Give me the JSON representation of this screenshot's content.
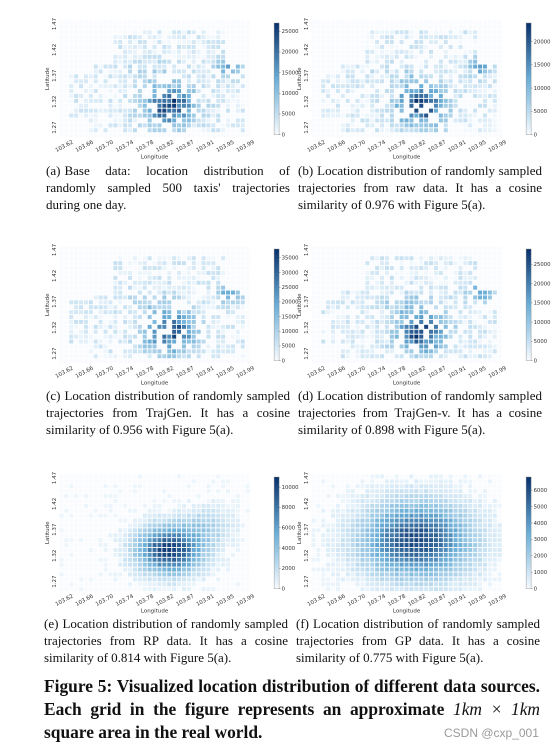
{
  "chart_data": [
    {
      "type": "heatmap",
      "panel_id": "a",
      "xlabel": "Longitude",
      "ylabel": "Latitude",
      "xticks": [
        "103.62",
        "103.66",
        "103.70",
        "103.74",
        "103.78",
        "103.82",
        "103.87",
        "103.91",
        "103.95",
        "103.99"
      ],
      "yticks": [
        "1.27",
        "1.32",
        "1.37",
        "1.42",
        "1.47"
      ],
      "colorbar_ticks": [
        "0",
        "5000",
        "10000",
        "15000",
        "20000",
        "25000"
      ],
      "colorbar_max": 27000,
      "distribution": "empirical",
      "seed": 11
    },
    {
      "type": "heatmap",
      "panel_id": "b",
      "xlabel": "Longitude",
      "ylabel": "Latitude",
      "xticks": [
        "103.62",
        "103.66",
        "103.70",
        "103.74",
        "103.78",
        "103.82",
        "103.87",
        "103.91",
        "103.95",
        "103.99"
      ],
      "yticks": [
        "1.27",
        "1.32",
        "1.37",
        "1.42",
        "1.47"
      ],
      "colorbar_ticks": [
        "0",
        "5000",
        "10000",
        "15000",
        "20000"
      ],
      "colorbar_max": 24000,
      "distribution": "empirical",
      "seed": 23
    },
    {
      "type": "heatmap",
      "panel_id": "c",
      "xlabel": "Longitude",
      "ylabel": "Latitude",
      "xticks": [
        "103.62",
        "103.66",
        "103.70",
        "103.74",
        "103.78",
        "103.82",
        "103.87",
        "103.91",
        "103.95",
        "103.99"
      ],
      "yticks": [
        "1.27",
        "1.32",
        "1.37",
        "1.42",
        "1.47"
      ],
      "colorbar_ticks": [
        "0",
        "5000",
        "10000",
        "15000",
        "20000",
        "25000",
        "30000",
        "35000"
      ],
      "colorbar_max": 38000,
      "distribution": "empirical",
      "seed": 37
    },
    {
      "type": "heatmap",
      "panel_id": "d",
      "xlabel": "Longitude",
      "ylabel": "Latitude",
      "xticks": [
        "103.62",
        "103.66",
        "103.70",
        "103.74",
        "103.78",
        "103.82",
        "103.87",
        "103.91",
        "103.95",
        "103.99"
      ],
      "yticks": [
        "1.27",
        "1.32",
        "1.37",
        "1.42",
        "1.47"
      ],
      "colorbar_ticks": [
        "0",
        "5000",
        "10000",
        "15000",
        "20000",
        "25000"
      ],
      "colorbar_max": 29000,
      "distribution": "empirical",
      "seed": 51
    },
    {
      "type": "heatmap",
      "panel_id": "e",
      "xlabel": "Longitude",
      "ylabel": "Latitude",
      "xticks": [
        "103.62",
        "103.66",
        "103.70",
        "103.74",
        "103.78",
        "103.82",
        "103.87",
        "103.91",
        "103.95",
        "103.99"
      ],
      "yticks": [
        "1.27",
        "1.32",
        "1.37",
        "1.42",
        "1.47"
      ],
      "colorbar_ticks": [
        "0",
        "2000",
        "4000",
        "6000",
        "8000",
        "10000"
      ],
      "colorbar_max": 11000,
      "distribution": "gaussian-blob",
      "seed": 67
    },
    {
      "type": "heatmap",
      "panel_id": "f",
      "xlabel": "Longitude",
      "ylabel": "Latitude",
      "xticks": [
        "103.62",
        "103.66",
        "103.70",
        "103.74",
        "103.78",
        "103.82",
        "103.87",
        "103.91",
        "103.95",
        "103.99"
      ],
      "yticks": [
        "1.27",
        "1.32",
        "1.37",
        "1.42",
        "1.47"
      ],
      "colorbar_ticks": [
        "0",
        "1000",
        "2000",
        "3000",
        "4000",
        "5000",
        "6000"
      ],
      "colorbar_max": 6800,
      "distribution": "gaussian-wide",
      "seed": 83
    }
  ],
  "captions": [
    {
      "tag": "(a)",
      "text": "Base data: location distribution of randomly sampled 500 taxis' trajectories during one day."
    },
    {
      "tag": "(b)",
      "text": "Location distribution of randomly sampled trajectories from raw data. It has a cosine similarity of 0.976 with Figure 5(a)."
    },
    {
      "tag": "(c)",
      "text": "Location distribution of randomly sampled trajectories from TrajGen. It has a cosine similarity of 0.956 with Figure 5(a)."
    },
    {
      "tag": "(d)",
      "text": "Location distribution of randomly sampled trajectories from TrajGen-v. It has a cosine similarity of 0.898 with Figure 5(a)."
    },
    {
      "tag": "(e)",
      "text": "Location distribution of randomly sampled trajectories from RP data. It has a cosine similarity of 0.814 with Figure 5(a)."
    },
    {
      "tag": "(f)",
      "text": "Location distribution of randomly sampled trajectories from GP data. It has a cosine similarity of 0.775 with Figure 5(a)."
    }
  ],
  "figure_caption": {
    "lead": "Figure 5: Visualized location distribution of different data sources. Each grid in the figure represents an approximate",
    "math": "1km × 1km",
    "tail": "square area in the real world."
  },
  "watermark": "CSDN @cxp_001",
  "colors": {
    "cmap_low": "#f7fbff",
    "cmap_mid": "#6baed6",
    "cmap_high": "#08306b"
  }
}
